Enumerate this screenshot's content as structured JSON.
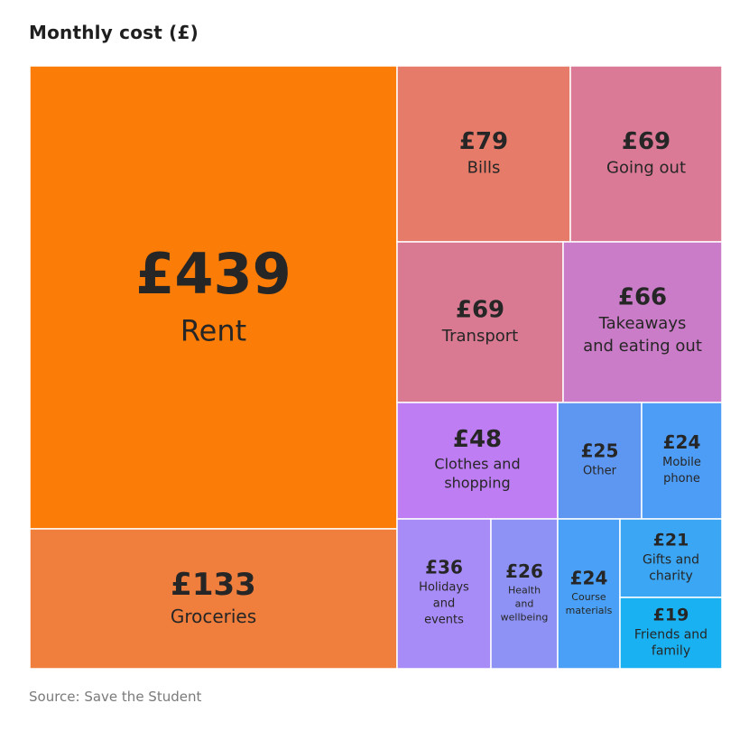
{
  "title": "Monthly cost (£)",
  "source": "Source: Save the Student",
  "chart_data": {
    "type": "treemap",
    "title": "Monthly cost (£)",
    "unit": "£",
    "items": [
      {
        "value": 439,
        "value_label": "£439",
        "label": [
          "Rent"
        ],
        "color": "#FB7C06"
      },
      {
        "value": 133,
        "value_label": "£133",
        "label": [
          "Groceries"
        ],
        "color": "#F07E3C"
      },
      {
        "value": 79,
        "value_label": "£79",
        "label": [
          "Bills"
        ],
        "color": "#E67B69"
      },
      {
        "value": 69,
        "value_label": "£69",
        "label": [
          "Going out"
        ],
        "color": "#DA7A96"
      },
      {
        "value": 69,
        "value_label": "£69",
        "label": [
          "Transport"
        ],
        "color": "#D97A92"
      },
      {
        "value": 66,
        "value_label": "£66",
        "label": [
          "Takeaways",
          "and eating out"
        ],
        "color": "#CB7CC8"
      },
      {
        "value": 48,
        "value_label": "£48",
        "label": [
          "Clothes and",
          "shopping"
        ],
        "color": "#BE7DF3"
      },
      {
        "value": 25,
        "value_label": "£25",
        "label": [
          "Other"
        ],
        "color": "#5E97F1"
      },
      {
        "value": 24,
        "value_label": "£24",
        "label": [
          "Mobile",
          "phone"
        ],
        "color": "#4D9CF5"
      },
      {
        "value": 36,
        "value_label": "£36",
        "label": [
          "Holidays",
          "and",
          "events"
        ],
        "color": "#A78BF7"
      },
      {
        "value": 26,
        "value_label": "£26",
        "label": [
          "Health",
          "and",
          "wellbeing"
        ],
        "color": "#8E92F4"
      },
      {
        "value": 24,
        "value_label": "£24",
        "label": [
          "Course",
          "materials"
        ],
        "color": "#4AA0F6"
      },
      {
        "value": 21,
        "value_label": "£21",
        "label": [
          "Gifts and",
          "charity"
        ],
        "color": "#3BA7F4"
      },
      {
        "value": 19,
        "value_label": "£19",
        "label": [
          "Friends and",
          "family"
        ],
        "color": "#19B1F1"
      }
    ]
  }
}
